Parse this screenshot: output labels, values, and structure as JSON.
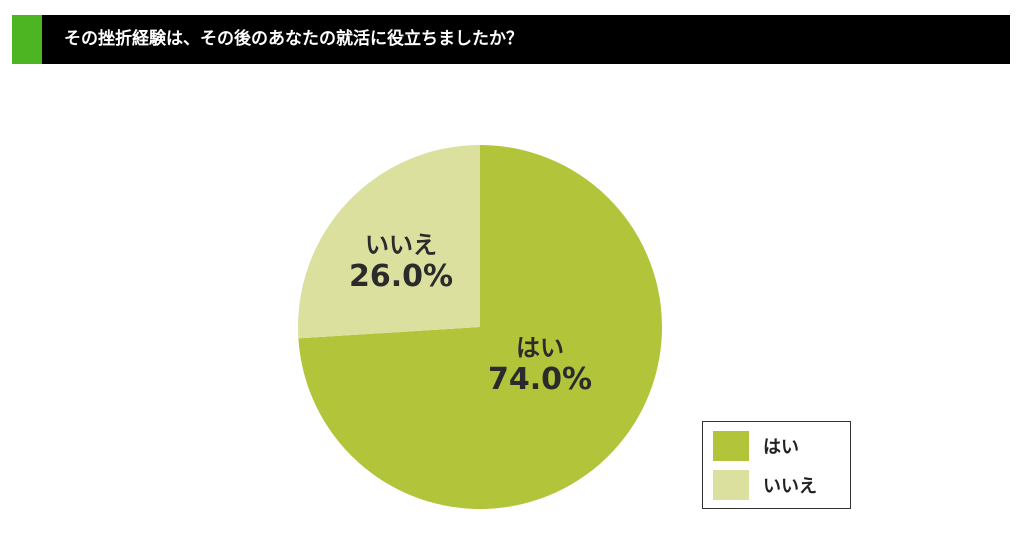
{
  "header": {
    "title": "その挫折経験は、その後のあなたの就活に役立ちましたか？",
    "accent_color": "#4cb521"
  },
  "chart_data": {
    "type": "pie",
    "title": "その挫折経験は、その後のあなたの就活に役立ちましたか？",
    "slices": [
      {
        "label": "はい",
        "value": 74.0,
        "display": "74.0%",
        "color": "#b2c43a"
      },
      {
        "label": "いいえ",
        "value": 26.0,
        "display": "26.0%",
        "color": "#dbe09e"
      }
    ],
    "legend": {
      "placement": "bottom-right",
      "entries": [
        "はい",
        "いいえ"
      ]
    }
  }
}
